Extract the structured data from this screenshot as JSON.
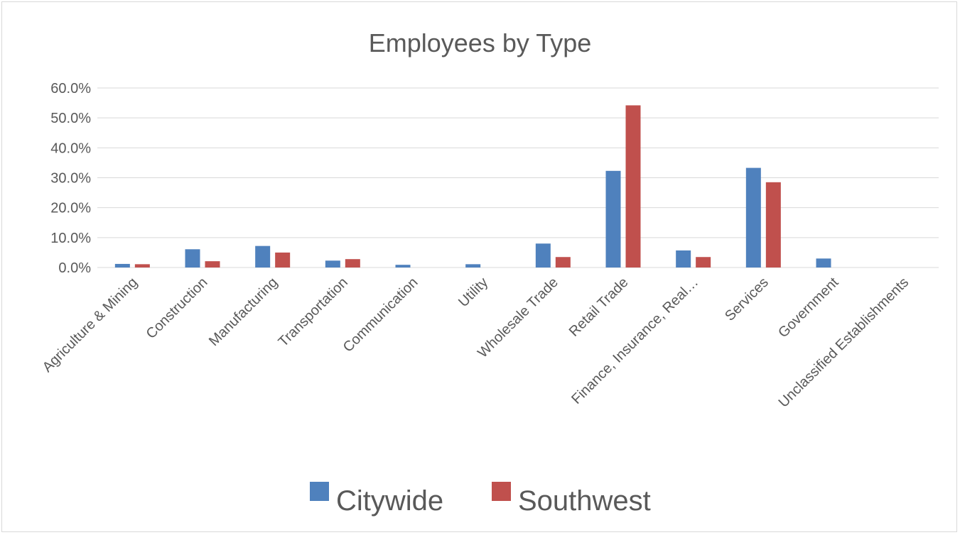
{
  "chart_data": {
    "type": "bar",
    "title": "Employees by Type",
    "xlabel": "",
    "ylabel": "",
    "ylim": [
      0,
      60
    ],
    "yticks": [
      "0.0%",
      "10.0%",
      "20.0%",
      "30.0%",
      "40.0%",
      "50.0%",
      "60.0%"
    ],
    "grid": true,
    "legend_position": "bottom",
    "categories": [
      "Agriculture & Mining",
      "Construction",
      "Manufacturing",
      "Transportation",
      "Communication",
      "Utility",
      "Wholesale Trade",
      "Retail Trade",
      "Finance, Insurance, Real…",
      "Services",
      "Government",
      "Unclassified Establishments"
    ],
    "series": [
      {
        "name": "Citywide",
        "color": "#4f81bd",
        "values": [
          1.2,
          6.1,
          7.2,
          2.3,
          0.9,
          1.1,
          8.0,
          32.3,
          5.7,
          33.3,
          3.0,
          0.0
        ]
      },
      {
        "name": "Southwest",
        "color": "#c0504d",
        "values": [
          1.1,
          2.1,
          5.0,
          2.8,
          0.0,
          0.0,
          3.5,
          54.2,
          3.5,
          28.5,
          0.0,
          0.0
        ]
      }
    ]
  }
}
